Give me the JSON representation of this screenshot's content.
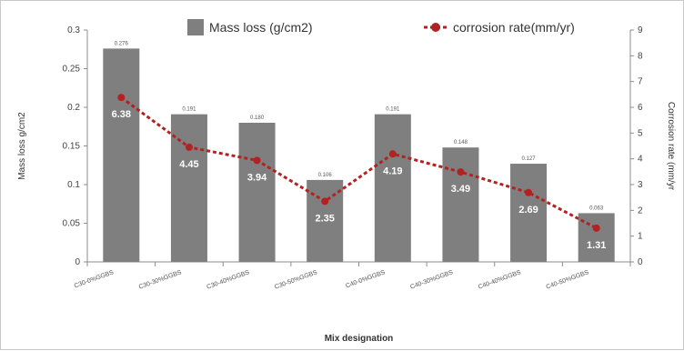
{
  "chart_data": {
    "type": "bar",
    "categories": [
      "C30-0%GGBS",
      "C30-30%GGBS",
      "C30-40%GGBS",
      "C30-50%GGBS",
      "C40-0%GGBS",
      "C40-30%GGBS",
      "C40-40%GGBS",
      "C40-50%GGBS"
    ],
    "series": [
      {
        "name": "Mass loss (g/cm2)",
        "type": "bar",
        "axis": "left",
        "color": "#7f7f7f",
        "values": [
          0.276,
          0.191,
          0.18,
          0.106,
          0.191,
          0.148,
          0.127,
          0.063
        ],
        "labels": [
          "0.276",
          "0.191",
          "0.180",
          "0.106",
          "0.191",
          "0.148",
          "0.127",
          "0.063"
        ]
      },
      {
        "name": "corrosion rate(mm/yr)",
        "type": "line",
        "axis": "right",
        "color": "#b22222",
        "values": [
          6.38,
          4.45,
          3.94,
          2.35,
          4.19,
          3.49,
          2.69,
          1.31
        ],
        "labels": [
          "6.38",
          "4.45",
          "3.94",
          "2.35",
          "4.19",
          "3.49",
          "2.69",
          "1.31"
        ]
      }
    ],
    "xlabel": "Mix designation",
    "ylabel": "Mass loss g/cm2",
    "y2label": "Corrosion rate (mm/yr",
    "ylim": [
      0,
      0.3
    ],
    "y2lim": [
      0,
      9
    ],
    "yticks": [
      "0",
      "0.05",
      "0.1",
      "0.15",
      "0.2",
      "0.25",
      "0.3"
    ],
    "y2ticks": [
      "0",
      "1",
      "2",
      "3",
      "4",
      "5",
      "6",
      "7",
      "8",
      "9"
    ],
    "grid": false,
    "legend_position": "top"
  }
}
